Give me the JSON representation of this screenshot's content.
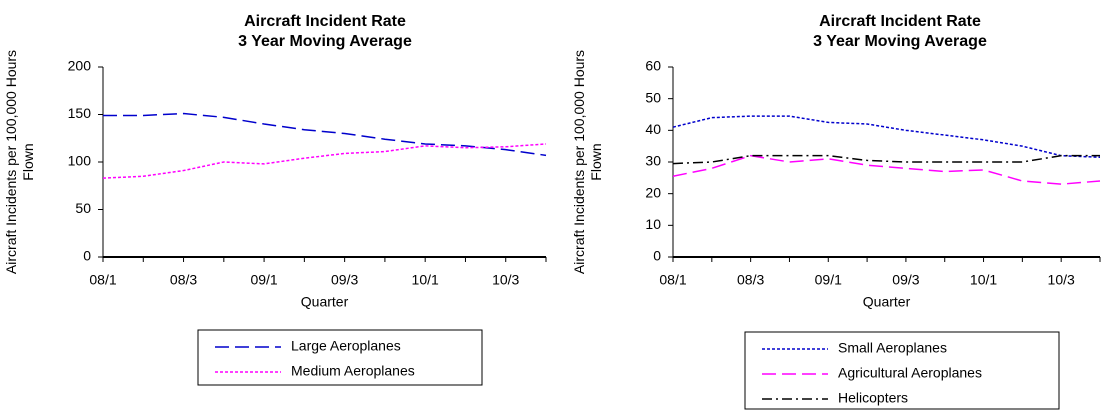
{
  "chart_data": [
    {
      "type": "line",
      "title": "Aircraft Incident Rate",
      "subtitle": "3 Year Moving Average",
      "xlabel": "Quarter",
      "ylabel": "Aircraft Incidents per 100,000  Hours Flown",
      "categories": [
        "08/1",
        null,
        "08/3",
        null,
        "09/1",
        null,
        "09/3",
        null,
        "10/1",
        null,
        "10/3",
        null
      ],
      "ylim": [
        0,
        200
      ],
      "yticks": [
        0,
        50,
        100,
        150,
        200
      ],
      "grid": false,
      "legend": "bottom",
      "series": [
        {
          "name": "Large Aeroplanes",
          "color": "#0000cc",
          "style": "dashed",
          "values": [
            149,
            149,
            151,
            147,
            140,
            134,
            130,
            124,
            119,
            117,
            113,
            107
          ]
        },
        {
          "name": "Medium Aeroplanes",
          "color": "#ff00ff",
          "style": "dotted",
          "values": [
            83,
            85,
            91,
            100,
            98,
            104,
            109,
            111,
            117,
            115,
            116,
            119
          ]
        }
      ]
    },
    {
      "type": "line",
      "title": "Aircraft Incident Rate",
      "subtitle": "3 Year Moving Average",
      "xlabel": "Quarter",
      "ylabel": "Aircraft Incidents per 100,000  Hours Flown",
      "categories": [
        "08/1",
        null,
        "08/3",
        null,
        "09/1",
        null,
        "09/3",
        null,
        "10/1",
        null,
        "10/3",
        null
      ],
      "ylim": [
        0,
        60
      ],
      "yticks": [
        0,
        10,
        20,
        30,
        40,
        50,
        60
      ],
      "grid": false,
      "legend": "bottom",
      "series": [
        {
          "name": "Small Aeroplanes",
          "color": "#0000cc",
          "style": "dotted",
          "values": [
            41,
            44,
            44.5,
            44.5,
            42.5,
            42,
            40,
            38.5,
            37,
            35,
            32,
            31.5
          ]
        },
        {
          "name": "Agricultural Aeroplanes",
          "color": "#ff00ff",
          "style": "dashed",
          "values": [
            25.5,
            28,
            32,
            30,
            31,
            29,
            28,
            27,
            27.5,
            24,
            23,
            24
          ]
        },
        {
          "name": "Helicopters",
          "color": "#000000",
          "style": "dashdot",
          "values": [
            29.5,
            30,
            32,
            32,
            32,
            30.5,
            30,
            30,
            30,
            30,
            32,
            32
          ]
        }
      ]
    }
  ]
}
